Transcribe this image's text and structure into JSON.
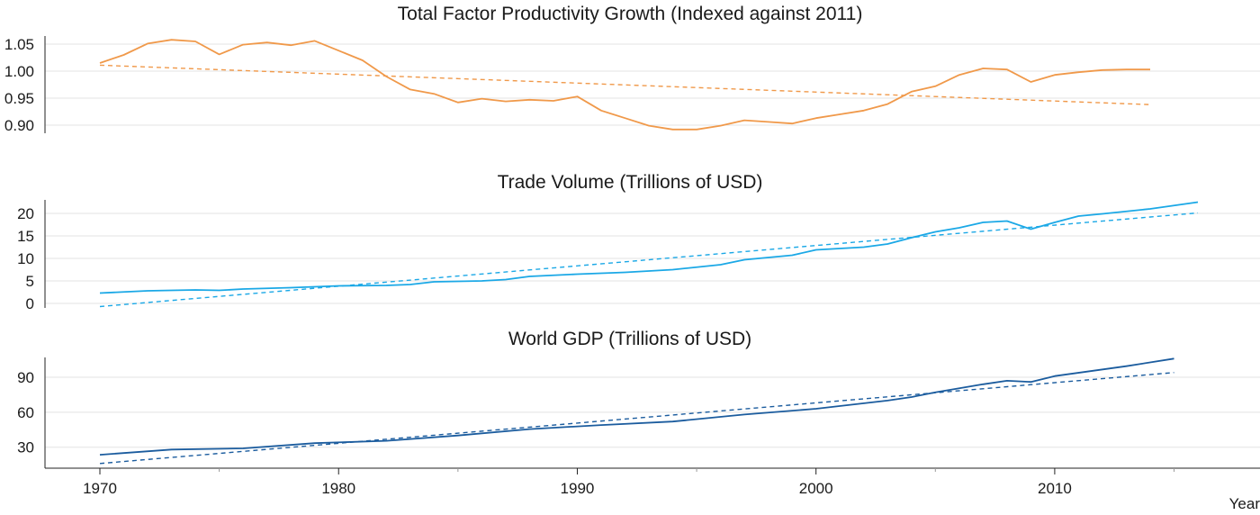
{
  "chart_data": [
    {
      "type": "line",
      "title": "Total Factor Productivity Growth (Indexed against 2011)",
      "ylim": [
        0.885,
        1.065
      ],
      "yticks": [
        "0.90",
        "0.95",
        "1.00",
        "1.05"
      ],
      "ytick_values": [
        0.9,
        0.95,
        1.0,
        1.05
      ],
      "color": "#f0994a",
      "series": [
        {
          "x": [
            1970,
            1971,
            1972,
            1973,
            1974,
            1975,
            1976,
            1977,
            1978,
            1979,
            1980,
            1981,
            1982,
            1983,
            1984,
            1985,
            1986,
            1987,
            1988,
            1989,
            1990,
            1991,
            1992,
            1993,
            1994,
            1995,
            1996,
            1997,
            1998,
            1999,
            2000,
            2001,
            2002,
            2003,
            2004,
            2005,
            2006,
            2007,
            2008,
            2009,
            2010,
            2011,
            2012,
            2013,
            2014
          ],
          "y": [
            1.015,
            1.03,
            1.051,
            1.058,
            1.055,
            1.031,
            1.049,
            1.053,
            1.048,
            1.056,
            1.038,
            1.02,
            0.99,
            0.966,
            0.958,
            0.942,
            0.949,
            0.944,
            0.947,
            0.945,
            0.953,
            0.927,
            0.913,
            0.899,
            0.892,
            0.892,
            0.899,
            0.909,
            0.906,
            0.903,
            0.913,
            0.92,
            0.927,
            0.939,
            0.962,
            0.972,
            0.993,
            1.005,
            1.003,
            0.98,
            0.993,
            0.998,
            1.002,
            1.003,
            1.003
          ]
        },
        {
          "style": "dashed",
          "x": [
            1970,
            2014
          ],
          "y": [
            1.011,
            0.938
          ]
        }
      ]
    },
    {
      "type": "line",
      "title": "Trade Volume (Trillions of USD)",
      "ylim": [
        -1,
        23
      ],
      "yticks": [
        "0",
        "5",
        "10",
        "15",
        "20"
      ],
      "ytick_values": [
        0,
        5,
        10,
        15,
        20
      ],
      "color": "#1ba8e6",
      "series": [
        {
          "x": [
            1970,
            1972,
            1974,
            1975,
            1976,
            1978,
            1980,
            1982,
            1983,
            1984,
            1985,
            1986,
            1987,
            1988,
            1990,
            1992,
            1994,
            1996,
            1997,
            1998,
            1999,
            2000,
            2002,
            2003,
            2004,
            2005,
            2006,
            2007,
            2008,
            2009,
            2010,
            2011,
            2012,
            2014,
            2016
          ],
          "y": [
            2.3,
            2.8,
            3.0,
            2.9,
            3.2,
            3.5,
            3.9,
            4.0,
            4.2,
            4.8,
            4.9,
            5.0,
            5.3,
            6.0,
            6.5,
            6.9,
            7.5,
            8.6,
            9.7,
            10.2,
            10.7,
            11.9,
            12.5,
            13.2,
            14.6,
            15.9,
            16.8,
            18.0,
            18.3,
            16.5,
            18.0,
            19.4,
            19.9,
            21.0,
            22.5
          ]
        },
        {
          "style": "dashed",
          "x": [
            1970,
            2016
          ],
          "y": [
            -0.7,
            20.1
          ]
        }
      ]
    },
    {
      "type": "line",
      "title": "World GDP (Trillions of USD)",
      "ylim": [
        12,
        107
      ],
      "yticks": [
        "30",
        "60",
        "90"
      ],
      "ytick_values": [
        30,
        60,
        90
      ],
      "color": "#1b5c9e",
      "series": [
        {
          "x": [
            1970,
            1973,
            1976,
            1979,
            1982,
            1985,
            1988,
            1991,
            1994,
            1997,
            2000,
            2003,
            2004,
            2005,
            2006,
            2007,
            2008,
            2009,
            2010,
            2013,
            2015
          ],
          "y": [
            23.5,
            28.0,
            29.0,
            33.5,
            35.5,
            40.0,
            45.5,
            49.0,
            52.0,
            58.0,
            63.0,
            70.0,
            73.0,
            77.0,
            80.5,
            84.0,
            87.0,
            86.0,
            91.0,
            99.5,
            106.0
          ]
        },
        {
          "style": "dashed",
          "x": [
            1970,
            2015
          ],
          "y": [
            16,
            94
          ]
        }
      ]
    }
  ],
  "x_axis": {
    "label": "Year",
    "xlim": [
      1967.7,
      2018.6
    ],
    "ticks": [
      "1970",
      "1980",
      "1990",
      "2000",
      "2010"
    ],
    "tick_values": [
      1970,
      1980,
      1990,
      2000,
      2010
    ],
    "minor_tick_values": [
      1975,
      1985,
      1995,
      2005,
      2015
    ]
  }
}
